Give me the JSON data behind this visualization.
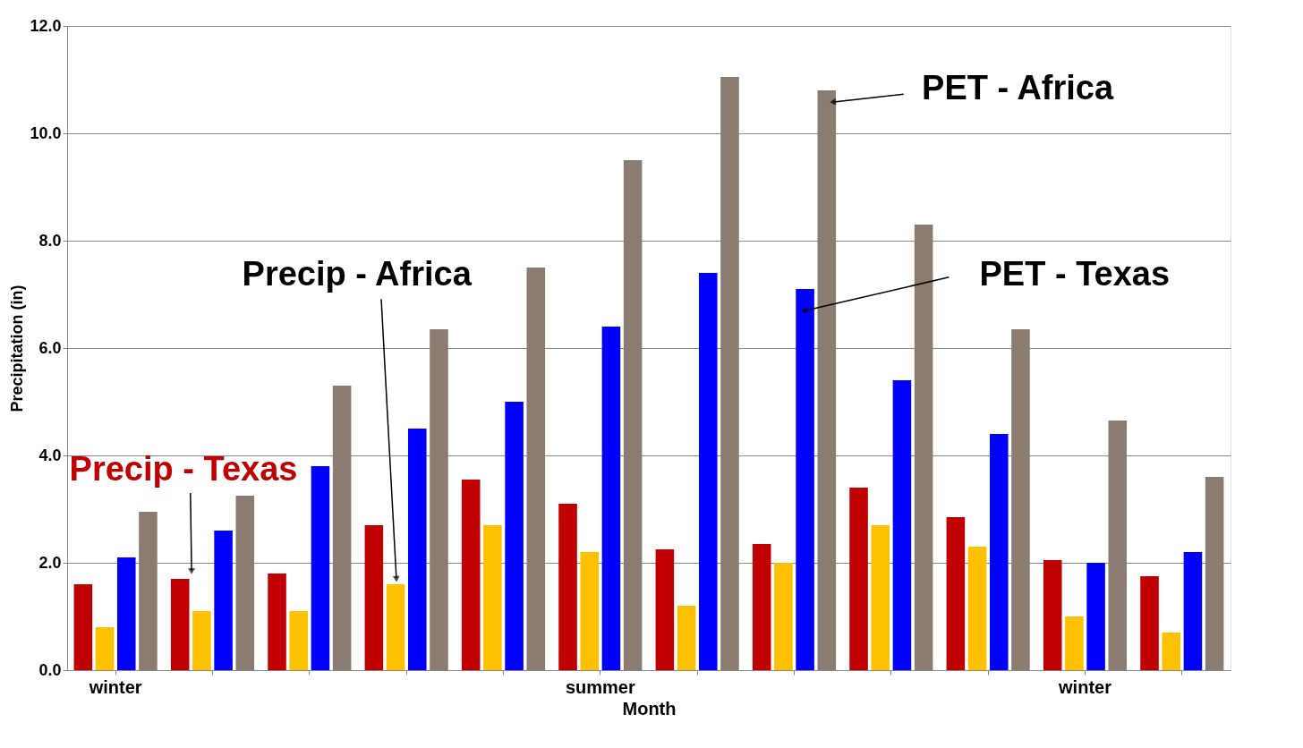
{
  "chart_data": {
    "type": "bar",
    "xlabel": "Month",
    "ylabel": "Precipitation (in)",
    "categories": [
      "winter",
      null,
      null,
      null,
      null,
      "summer",
      null,
      null,
      null,
      null,
      "winter",
      null
    ],
    "series": [
      {
        "name": "Precip - Texas",
        "color": "#c00000",
        "values": [
          1.6,
          1.7,
          1.8,
          2.7,
          3.55,
          3.1,
          2.25,
          2.35,
          3.4,
          2.85,
          2.05,
          1.75
        ]
      },
      {
        "name": "Precip - Africa",
        "color": "#ffc000",
        "values": [
          0.8,
          1.1,
          1.1,
          1.6,
          2.7,
          2.2,
          1.2,
          2.0,
          2.7,
          2.3,
          1.0,
          0.7
        ]
      },
      {
        "name": "PET - Texas",
        "color": "#0000ff",
        "values": [
          2.1,
          2.6,
          3.8,
          4.5,
          5.0,
          6.4,
          7.4,
          7.1,
          5.4,
          4.4,
          2.0,
          2.2
        ]
      },
      {
        "name": "PET - Africa",
        "color": "#8b7b70",
        "values": [
          2.95,
          3.25,
          5.3,
          6.35,
          7.5,
          9.5,
          11.05,
          10.8,
          8.3,
          6.35,
          4.65,
          3.6
        ]
      }
    ],
    "ylim": [
      0,
      12
    ],
    "yticks": [
      {
        "value": 0,
        "label": "0.0"
      },
      {
        "value": 2,
        "label": "2.0"
      },
      {
        "value": 4,
        "label": "4.0"
      },
      {
        "value": 6,
        "label": "6.0"
      },
      {
        "value": 8,
        "label": "8.0"
      },
      {
        "value": 10,
        "label": "10.0"
      },
      {
        "value": 12,
        "label": "12.0"
      }
    ],
    "grid": "y",
    "legend": false
  }
}
